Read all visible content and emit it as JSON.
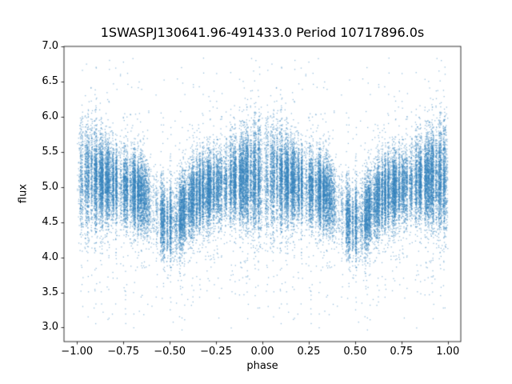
{
  "chart_data": {
    "type": "scatter",
    "title": "1SWASPJ130641.96-491433.0 Period 10717896.0s",
    "xlabel": "phase",
    "ylabel": "flux",
    "xlim": [
      -1.07,
      1.07
    ],
    "ylim": [
      2.8,
      7.0
    ],
    "xticks": [
      -1.0,
      -0.75,
      -0.5,
      -0.25,
      0.0,
      0.25,
      0.5,
      0.75,
      1.0
    ],
    "xtick_labels": [
      "−1.00",
      "−0.75",
      "−0.50",
      "−0.25",
      "0.00",
      "0.25",
      "0.50",
      "0.75",
      "1.00"
    ],
    "yticks": [
      3.0,
      3.5,
      4.0,
      4.5,
      5.0,
      5.5,
      6.0,
      6.5,
      7.0
    ],
    "ytick_labels": [
      "3.0",
      "3.5",
      "4.0",
      "4.5",
      "5.0",
      "5.5",
      "6.0",
      "6.5",
      "7.0"
    ],
    "grid": false,
    "legend": null,
    "point_color": "#3584bd",
    "point_alpha": 0.5,
    "marker_size": 1.3,
    "n_points": 22000,
    "phase_folded_display": "each phase point in [0,1) is plotted twice, at p and p-1",
    "scatter_model": {
      "seed": 20130641,
      "striation_bins": 120,
      "gap_fraction": 0.07,
      "baseline_flux": 5.0,
      "cos_amplitude": 0.13,
      "dip": {
        "center": 0.5,
        "depth": 0.38,
        "width": 0.07
      },
      "sigma_base": 0.27,
      "sigma_peak": 0.13,
      "sigma_peak_width": 0.08,
      "outlier_fraction": 0.05,
      "outlier_sigma": 0.85,
      "flux_min": 2.95,
      "flux_max": 6.85
    }
  }
}
